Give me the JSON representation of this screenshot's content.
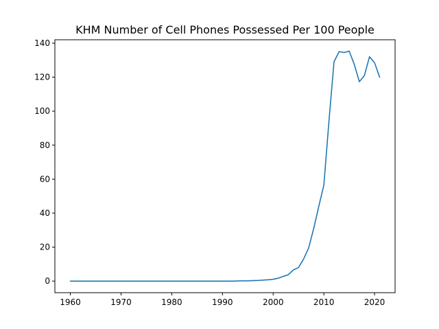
{
  "chart_data": {
    "type": "line",
    "title": "KHM Number of Cell Phones Possessed Per 100 People",
    "xlabel": "",
    "ylabel": "",
    "xlim": [
      1956.95,
      2024.05
    ],
    "ylim": [
      -6.8,
      142.0
    ],
    "grid": false,
    "x_ticks": [
      1960,
      1970,
      1980,
      1990,
      2000,
      2010,
      2020
    ],
    "y_ticks": [
      0,
      20,
      40,
      60,
      80,
      100,
      120,
      140
    ],
    "series": [
      {
        "color": "#1f77b4",
        "x": [
          1960,
          1961,
          1962,
          1963,
          1964,
          1965,
          1966,
          1967,
          1968,
          1969,
          1970,
          1971,
          1972,
          1973,
          1974,
          1975,
          1976,
          1977,
          1978,
          1979,
          1980,
          1981,
          1982,
          1983,
          1984,
          1985,
          1986,
          1987,
          1988,
          1989,
          1990,
          1991,
          1992,
          1993,
          1994,
          1995,
          1996,
          1997,
          1998,
          1999,
          2000,
          2001,
          2002,
          2003,
          2004,
          2005,
          2006,
          2007,
          2008,
          2009,
          2010,
          2011,
          2012,
          2013,
          2014,
          2015,
          2016,
          2017,
          2018,
          2019,
          2020,
          2021
        ],
        "y": [
          0,
          0,
          0,
          0,
          0,
          0,
          0,
          0,
          0,
          0,
          0,
          0,
          0,
          0,
          0,
          0,
          0,
          0,
          0,
          0,
          0,
          0,
          0,
          0,
          0,
          0,
          0,
          0,
          0,
          0,
          0,
          0,
          0,
          0.1,
          0.2,
          0.2,
          0.3,
          0.4,
          0.6,
          0.8,
          1.1,
          1.7,
          2.8,
          3.8,
          6.6,
          8.0,
          13.0,
          19.5,
          31.0,
          44.0,
          56.5,
          94.0,
          129.0,
          135.0,
          134.5,
          135.3,
          127.5,
          117.3,
          121.0,
          132.0,
          128.5,
          120.0
        ]
      }
    ]
  }
}
